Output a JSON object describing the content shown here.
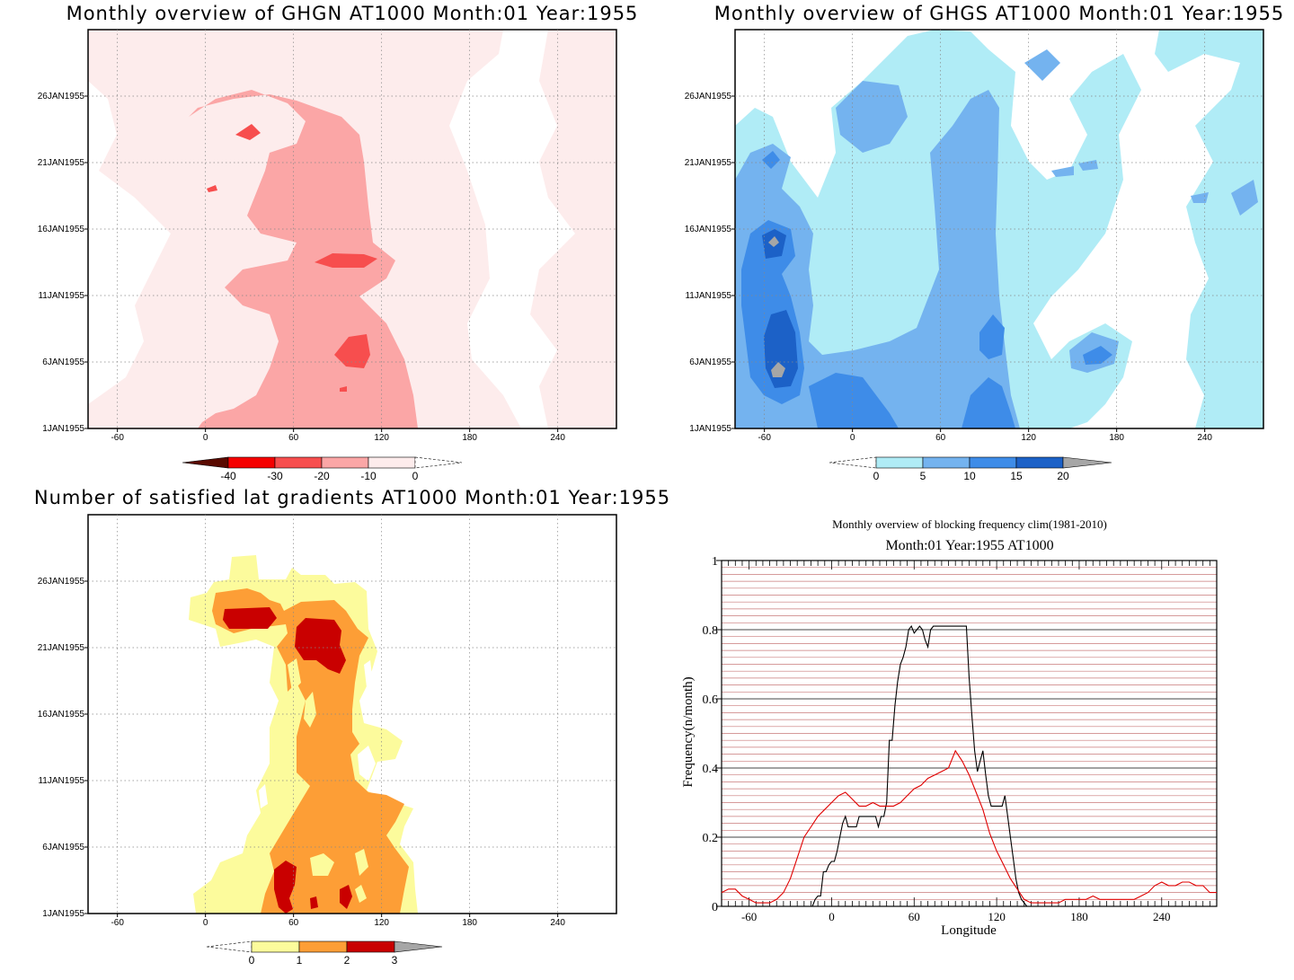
{
  "colors": {
    "ghgn_levels": [
      "#5a0a00",
      "#f50000",
      "#f74e4e",
      "#fba6a6",
      "#fdecec",
      "#ffffff"
    ],
    "ghgs_levels": [
      "#ffffff",
      "#b0ecf6",
      "#74b3ef",
      "#3e8ce8",
      "#1c61c7",
      "#a6a6a6"
    ],
    "lat_levels": [
      "#ffffff",
      "#fcfb9c",
      "#fd9e36",
      "#c90000",
      "#a6a6a6"
    ],
    "freq_black": "#000000",
    "freq_red": "#e00000",
    "grid_red": "#c97a7a"
  },
  "chart_data": [
    {
      "id": "ghgn",
      "type": "heatmap",
      "title": "Monthly overview of GHGN AT1000 Month:01 Year:1955",
      "x_ticks": [
        "-60",
        "0",
        "60",
        "120",
        "180",
        "240"
      ],
      "y_ticks": [
        "1JAN1955",
        "6JAN1955",
        "11JAN1955",
        "16JAN1955",
        "21JAN1955",
        "26JAN1955"
      ],
      "xlim": [
        -80,
        280
      ],
      "colorbar_labels": [
        "-40",
        "-30",
        "-20",
        "-10",
        "0"
      ]
    },
    {
      "id": "ghgs",
      "type": "heatmap",
      "title": "Monthly overview of GHGS AT1000 Month:01 Year:1955",
      "x_ticks": [
        "-60",
        "0",
        "60",
        "120",
        "180",
        "240"
      ],
      "y_ticks": [
        "1JAN1955",
        "6JAN1955",
        "11JAN1955",
        "16JAN1955",
        "21JAN1955",
        "26JAN1955"
      ],
      "xlim": [
        -80,
        280
      ],
      "colorbar_labels": [
        "0",
        "5",
        "10",
        "15",
        "20"
      ]
    },
    {
      "id": "latgrad",
      "type": "heatmap",
      "title": "Number of satisfied lat gradients AT1000 Month:01 Year:1955",
      "x_ticks": [
        "-60",
        "0",
        "60",
        "120",
        "180",
        "240"
      ],
      "y_ticks": [
        "1JAN1955",
        "6JAN1955",
        "11JAN1955",
        "16JAN1955",
        "21JAN1955",
        "26JAN1955"
      ],
      "xlim": [
        -80,
        280
      ],
      "colorbar_labels": [
        "0",
        "1",
        "2",
        "3"
      ]
    },
    {
      "id": "freq",
      "type": "line",
      "title": "Monthly overview of blocking frequency clim(1981-2010)",
      "subtitle": "Month:01 Year:1955  AT1000",
      "xlabel": "Longitude",
      "ylabel": "Frequency(n/month)",
      "xlim": [
        -80,
        280
      ],
      "ylim": [
        0,
        1
      ],
      "x_ticks": [
        "-60",
        "0",
        "60",
        "120",
        "180",
        "240"
      ],
      "y_ticks": [
        "0",
        "0.2",
        "0.4",
        "0.6",
        "0.8",
        "1"
      ],
      "series": [
        {
          "color": "black",
          "x": [
            -14,
            -12,
            -10,
            -8,
            -6,
            -4,
            -2,
            0,
            2,
            4,
            6,
            8,
            10,
            12,
            14,
            16,
            18,
            20,
            22,
            24,
            26,
            28,
            30,
            32,
            34,
            36,
            38,
            40,
            42,
            44,
            46,
            48,
            50,
            52,
            54,
            56,
            58,
            60,
            62,
            64,
            66,
            68,
            70,
            72,
            74,
            76,
            78,
            80,
            82,
            84,
            86,
            88,
            90,
            92,
            94,
            96,
            98,
            100,
            102,
            104,
            106,
            108,
            110,
            112,
            114,
            116,
            118,
            120,
            122,
            124,
            126,
            128,
            130,
            132,
            134,
            136,
            138,
            140,
            142
          ],
          "y": [
            0.0,
            0.02,
            0.03,
            0.03,
            0.1,
            0.1,
            0.12,
            0.13,
            0.13,
            0.16,
            0.2,
            0.24,
            0.26,
            0.23,
            0.23,
            0.23,
            0.23,
            0.26,
            0.26,
            0.26,
            0.26,
            0.26,
            0.26,
            0.26,
            0.23,
            0.26,
            0.26,
            0.3,
            0.48,
            0.48,
            0.58,
            0.65,
            0.7,
            0.72,
            0.75,
            0.8,
            0.81,
            0.79,
            0.8,
            0.81,
            0.8,
            0.77,
            0.75,
            0.8,
            0.81,
            0.81,
            0.81,
            0.81,
            0.81,
            0.81,
            0.81,
            0.81,
            0.81,
            0.81,
            0.81,
            0.81,
            0.81,
            0.66,
            0.55,
            0.45,
            0.39,
            0.42,
            0.45,
            0.38,
            0.32,
            0.29,
            0.29,
            0.29,
            0.29,
            0.29,
            0.32,
            0.26,
            0.2,
            0.14,
            0.08,
            0.04,
            0.02,
            0.01,
            0.0
          ]
        },
        {
          "color": "red",
          "x": [
            -80,
            -75,
            -70,
            -65,
            -60,
            -55,
            -50,
            -45,
            -40,
            -35,
            -30,
            -25,
            -20,
            -15,
            -10,
            -5,
            0,
            5,
            10,
            15,
            20,
            25,
            30,
            35,
            40,
            45,
            50,
            55,
            60,
            65,
            70,
            75,
            80,
            85,
            90,
            95,
            100,
            105,
            110,
            115,
            120,
            125,
            130,
            135,
            140,
            145,
            150,
            155,
            160,
            165,
            170,
            175,
            180,
            185,
            190,
            195,
            200,
            205,
            210,
            215,
            220,
            225,
            230,
            235,
            240,
            245,
            250,
            255,
            260,
            265,
            270,
            275,
            280
          ],
          "y": [
            0.04,
            0.05,
            0.05,
            0.03,
            0.02,
            0.01,
            0.01,
            0.01,
            0.02,
            0.04,
            0.08,
            0.14,
            0.2,
            0.23,
            0.26,
            0.28,
            0.3,
            0.32,
            0.33,
            0.31,
            0.29,
            0.29,
            0.3,
            0.29,
            0.29,
            0.29,
            0.3,
            0.32,
            0.34,
            0.35,
            0.37,
            0.38,
            0.39,
            0.4,
            0.45,
            0.42,
            0.38,
            0.33,
            0.28,
            0.21,
            0.16,
            0.12,
            0.08,
            0.05,
            0.02,
            0.01,
            0.01,
            0.01,
            0.01,
            0.01,
            0.02,
            0.02,
            0.02,
            0.02,
            0.03,
            0.02,
            0.02,
            0.02,
            0.02,
            0.02,
            0.02,
            0.03,
            0.04,
            0.06,
            0.07,
            0.06,
            0.06,
            0.07,
            0.07,
            0.06,
            0.06,
            0.04,
            0.04
          ]
        }
      ]
    }
  ]
}
